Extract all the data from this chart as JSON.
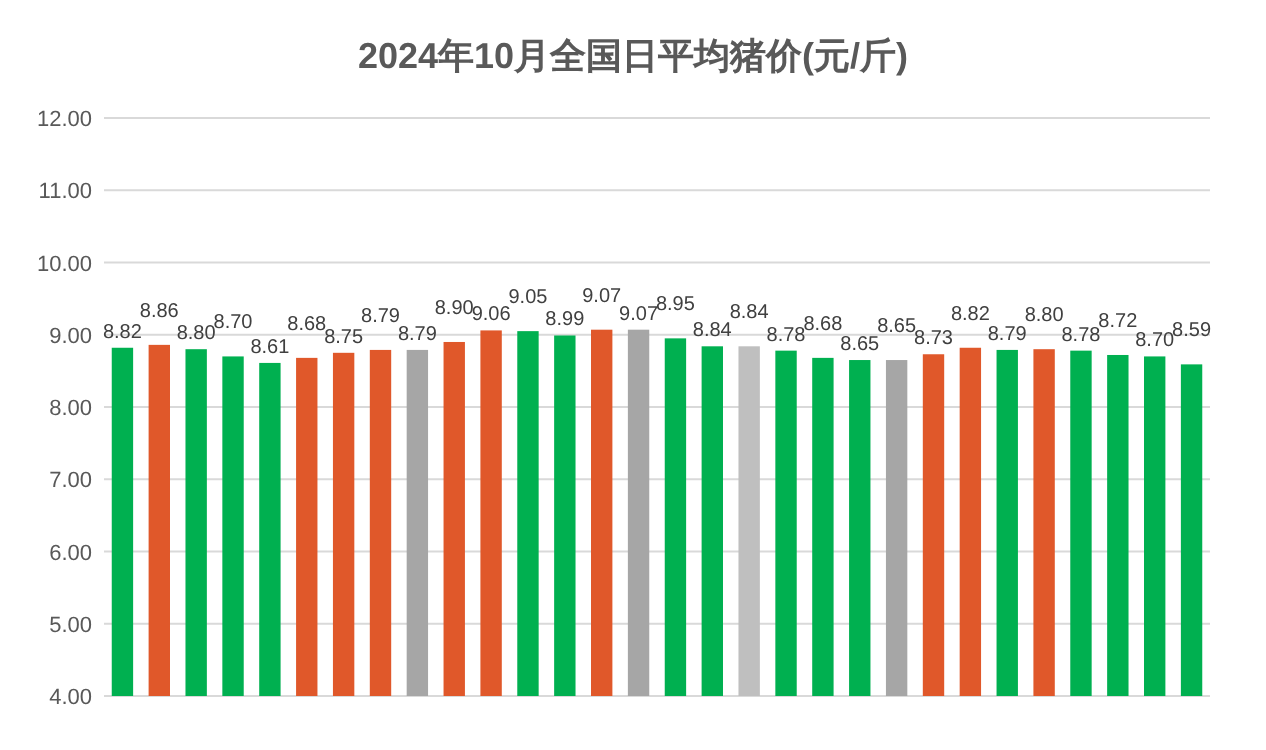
{
  "chart_data": {
    "type": "bar",
    "title": "2024年10月全国日平均猪价(元/斤)",
    "categories": [
      null,
      null,
      null,
      null,
      null,
      null,
      null,
      null,
      null,
      null,
      null,
      null,
      null,
      null,
      null,
      null,
      null,
      null,
      null,
      null,
      null,
      null,
      null,
      null,
      null,
      null,
      null,
      null,
      null,
      null
    ],
    "values": [
      8.82,
      8.86,
      8.8,
      8.7,
      8.61,
      8.68,
      8.75,
      8.79,
      8.79,
      8.9,
      9.06,
      9.05,
      8.99,
      9.07,
      9.07,
      8.95,
      8.84,
      8.84,
      8.78,
      8.68,
      8.65,
      8.65,
      8.73,
      8.82,
      8.79,
      8.8,
      8.78,
      8.72,
      8.7,
      8.59
    ],
    "colors": [
      "#00b050",
      "#e0582a",
      "#00b050",
      "#00b050",
      "#00b050",
      "#e0582a",
      "#e0582a",
      "#e0582a",
      "#a6a6a6",
      "#e0582a",
      "#e0582a",
      "#00b050",
      "#00b050",
      "#e0582a",
      "#a6a6a6",
      "#00b050",
      "#00b050",
      "#bfbfbf",
      "#00b050",
      "#00b050",
      "#00b050",
      "#a6a6a6",
      "#e0582a",
      "#e0582a",
      "#00b050",
      "#e0582a",
      "#00b050",
      "#00b050",
      "#00b050",
      "#00b050"
    ],
    "ylim": [
      4,
      12
    ],
    "yticks": [
      {
        "value": 4,
        "label": "4.00"
      },
      {
        "value": 5,
        "label": "5.00"
      },
      {
        "value": 6,
        "label": "6.00"
      },
      {
        "value": 7,
        "label": "7.00"
      },
      {
        "value": 8,
        "label": "8.00"
      },
      {
        "value": 9,
        "label": "9.00"
      },
      {
        "value": 10,
        "label": "10.00"
      },
      {
        "value": 11,
        "label": "11.00"
      },
      {
        "value": 12,
        "label": "12.00"
      }
    ],
    "value_labels": [
      "8.82",
      "8.86",
      "8.80",
      "8.70",
      "8.61",
      "8.68",
      "8.75",
      "8.79",
      "8.79",
      "8.90",
      "9.06",
      "9.05",
      "8.99",
      "9.07",
      "9.07",
      "8.95",
      "8.84",
      "8.84",
      "8.78",
      "8.68",
      "8.65",
      "8.65",
      "8.73",
      "8.82",
      "8.79",
      "8.80",
      "8.78",
      "8.72",
      "8.70",
      "8.59"
    ],
    "grid": "y"
  }
}
